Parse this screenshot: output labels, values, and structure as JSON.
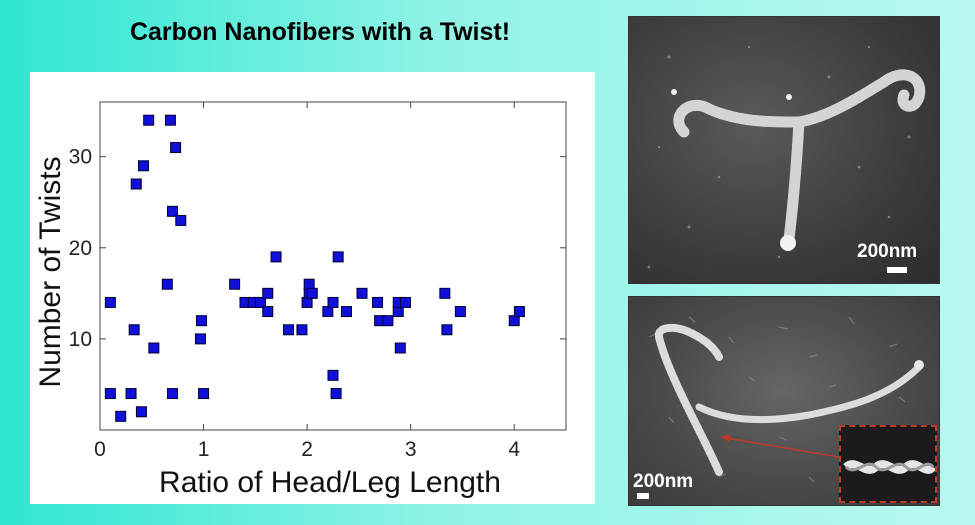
{
  "title": "Carbon Nanofibers with a Twist!",
  "chart_data": {
    "type": "scatter",
    "xlabel": "Ratio of Head/Leg Length",
    "ylabel": "Number of Twists",
    "xlim": [
      0,
      4.5
    ],
    "ylim": [
      0,
      36
    ],
    "xticks": [
      0,
      1,
      2,
      3,
      4
    ],
    "yticks": [
      10,
      20,
      30
    ],
    "marker_color": "#1010d8",
    "points": [
      [
        0.1,
        14
      ],
      [
        0.1,
        4
      ],
      [
        0.2,
        1.5
      ],
      [
        0.3,
        4
      ],
      [
        0.33,
        11
      ],
      [
        0.35,
        27
      ],
      [
        0.4,
        2
      ],
      [
        0.42,
        29
      ],
      [
        0.47,
        34
      ],
      [
        0.52,
        9
      ],
      [
        0.65,
        16
      ],
      [
        0.68,
        34
      ],
      [
        0.7,
        24
      ],
      [
        0.7,
        4
      ],
      [
        0.73,
        31
      ],
      [
        0.78,
        23
      ],
      [
        0.97,
        10
      ],
      [
        0.98,
        12
      ],
      [
        1.0,
        4
      ],
      [
        1.3,
        16
      ],
      [
        1.4,
        14
      ],
      [
        1.48,
        14
      ],
      [
        1.55,
        14
      ],
      [
        1.62,
        13
      ],
      [
        1.62,
        15
      ],
      [
        1.7,
        19
      ],
      [
        1.82,
        11
      ],
      [
        1.95,
        11
      ],
      [
        2.0,
        14
      ],
      [
        2.02,
        15
      ],
      [
        2.02,
        16
      ],
      [
        2.05,
        15
      ],
      [
        2.2,
        13
      ],
      [
        2.25,
        14
      ],
      [
        2.25,
        6
      ],
      [
        2.28,
        4
      ],
      [
        2.3,
        19
      ],
      [
        2.38,
        13
      ],
      [
        2.53,
        15
      ],
      [
        2.68,
        14
      ],
      [
        2.7,
        12
      ],
      [
        2.78,
        12
      ],
      [
        2.88,
        13
      ],
      [
        2.88,
        14
      ],
      [
        2.9,
        9
      ],
      [
        2.95,
        14
      ],
      [
        3.33,
        15
      ],
      [
        3.35,
        11
      ],
      [
        3.48,
        13
      ],
      [
        4.0,
        12
      ],
      [
        4.05,
        13
      ]
    ]
  },
  "images": [
    {
      "scale_label": "200nm"
    },
    {
      "scale_label": "200nm"
    }
  ]
}
